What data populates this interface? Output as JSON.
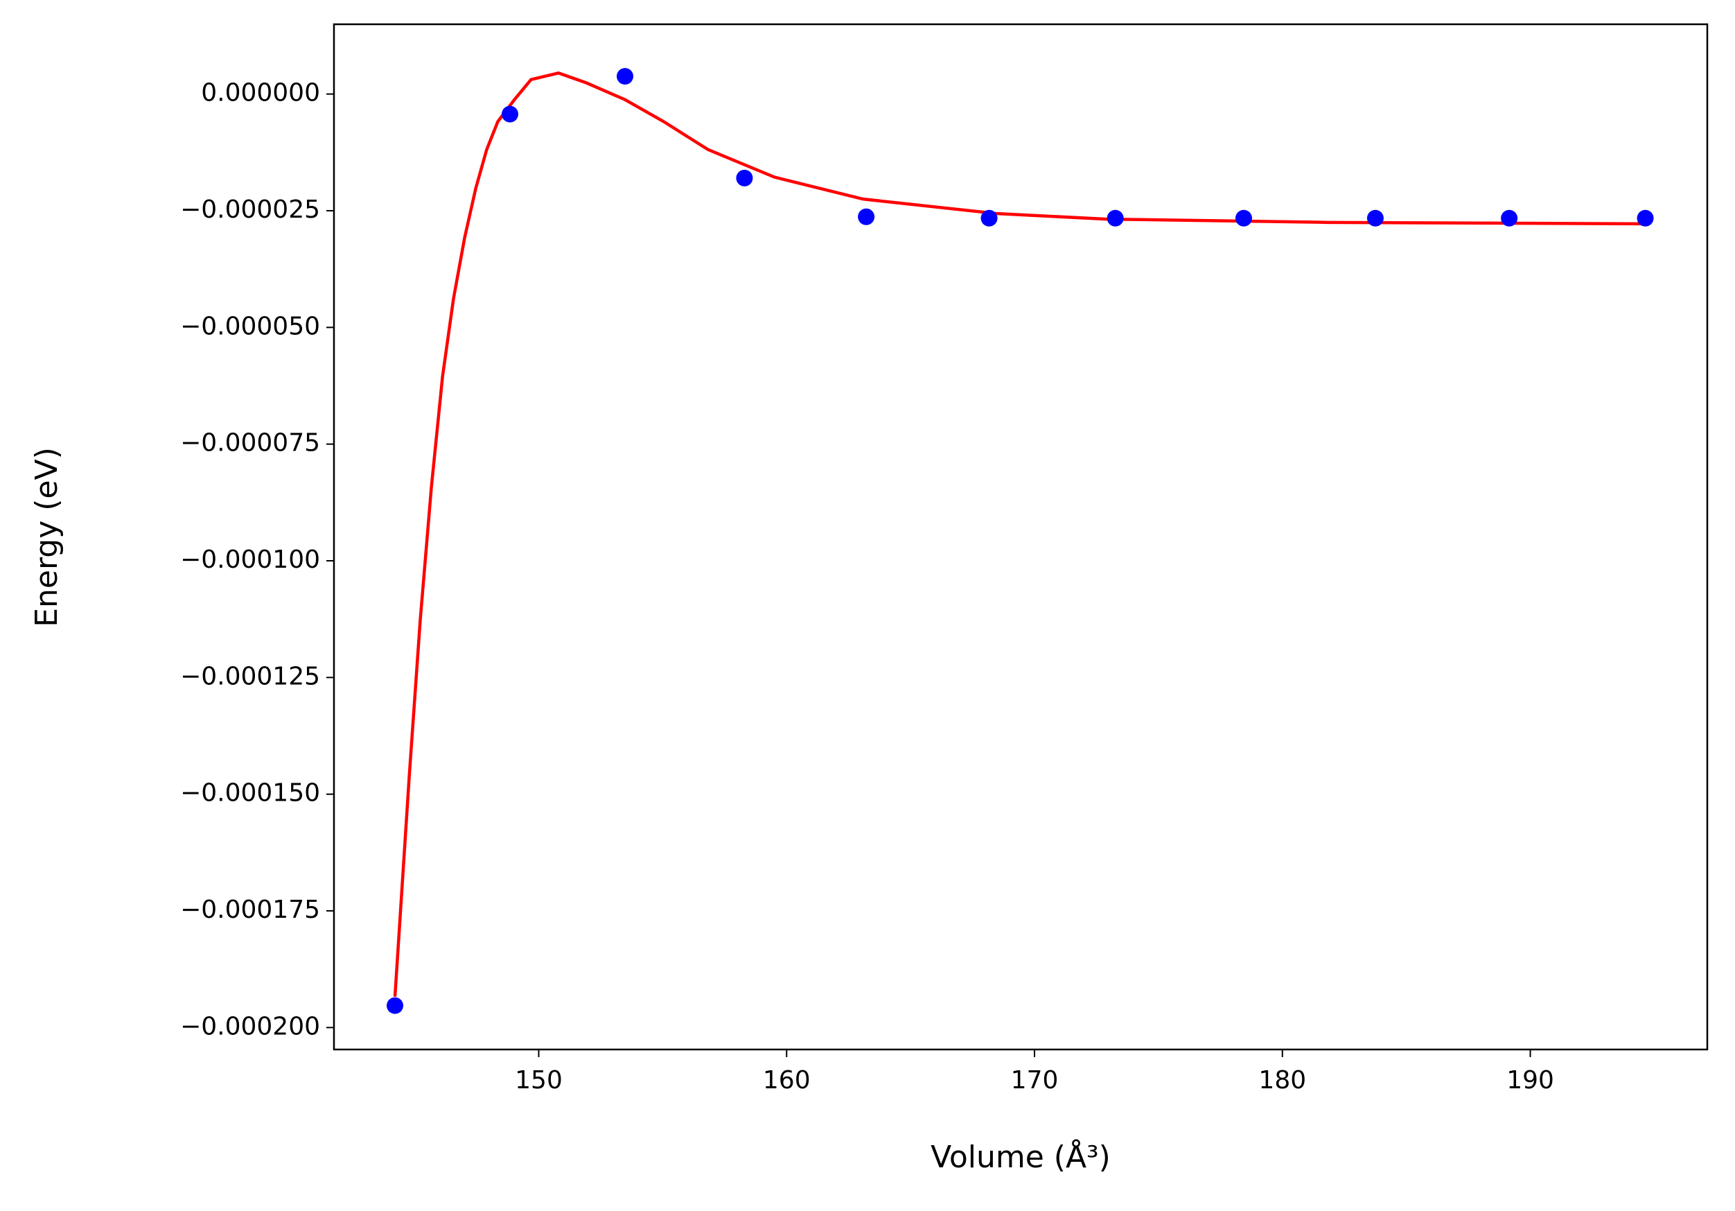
{
  "chart_data": {
    "type": "scatter",
    "xlabel": "Volume (Å³)",
    "ylabel": "Energy (eV)",
    "xlim": [
      141.74,
      197.14
    ],
    "ylim": [
      -0.0002047,
      1.495e-05
    ],
    "xticks": [
      150,
      160,
      170,
      180,
      190
    ],
    "yticks": [
      {
        "value": 0,
        "label": "0.000000"
      },
      {
        "value": -2.5e-05,
        "label": "−0.000025"
      },
      {
        "value": -5e-05,
        "label": "−0.000050"
      },
      {
        "value": -7.5e-05,
        "label": "−0.000075"
      },
      {
        "value": -0.0001,
        "label": "−0.000100"
      },
      {
        "value": -0.000125,
        "label": "−0.000125"
      },
      {
        "value": -0.00015,
        "label": "−0.000150"
      },
      {
        "value": -0.000175,
        "label": "−0.000175"
      },
      {
        "value": -0.0002,
        "label": "−0.000200"
      }
    ],
    "series": [
      {
        "type": "line",
        "color": "#ff0000",
        "x": [
          144.2,
          144.78,
          145.22,
          145.67,
          146.12,
          146.56,
          147.01,
          147.46,
          147.9,
          148.35,
          149.02,
          149.69,
          150.8,
          151.92,
          153.48,
          155.04,
          156.83,
          159.51,
          163.08,
          168.44,
          172.9,
          181.83,
          194.64
        ],
        "values": [
          -0.0001934,
          -0.0001459,
          -0.0001127,
          -8.42e-05,
          -6.05e-05,
          -4.39e-05,
          -3.08e-05,
          -2.02e-05,
          -1.19e-05,
          -5.9e-06,
          -1.2e-06,
          3.1e-06,
          4.5e-06,
          2.4e-06,
          -1.2e-06,
          -5.9e-06,
          -1.19e-05,
          -1.78e-05,
          -2.25e-05,
          -2.56e-05,
          -2.68e-05,
          -2.75e-05,
          -2.78e-05
        ]
      },
      {
        "type": "scatter",
        "color": "#0000ff",
        "x": [
          144.2,
          148.84,
          153.48,
          158.3,
          163.21,
          168.17,
          173.26,
          178.44,
          183.75,
          189.15,
          194.64
        ],
        "values": [
          -0.0001953,
          -4.3e-06,
          3.8e-06,
          -1.8e-05,
          -2.63e-05,
          -2.66e-05,
          -2.66e-05,
          -2.66e-05,
          -2.66e-05,
          -2.66e-05,
          -2.66e-05
        ]
      }
    ]
  }
}
